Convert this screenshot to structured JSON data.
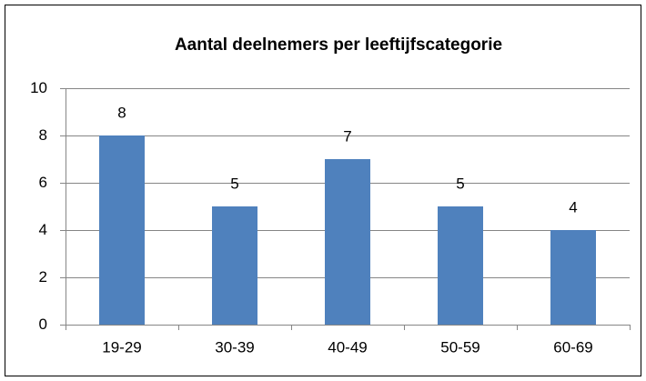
{
  "chart_data": {
    "type": "bar",
    "title": "Aantal deelnemers per leeftijfscategorie",
    "categories": [
      "19-29",
      "30-39",
      "40-49",
      "50-59",
      "60-69"
    ],
    "values": [
      8,
      5,
      7,
      5,
      4
    ],
    "color": "#4f81bd",
    "ylim": [
      0,
      10
    ],
    "yticks": [
      0,
      2,
      4,
      6,
      8,
      10
    ],
    "grid": true
  }
}
